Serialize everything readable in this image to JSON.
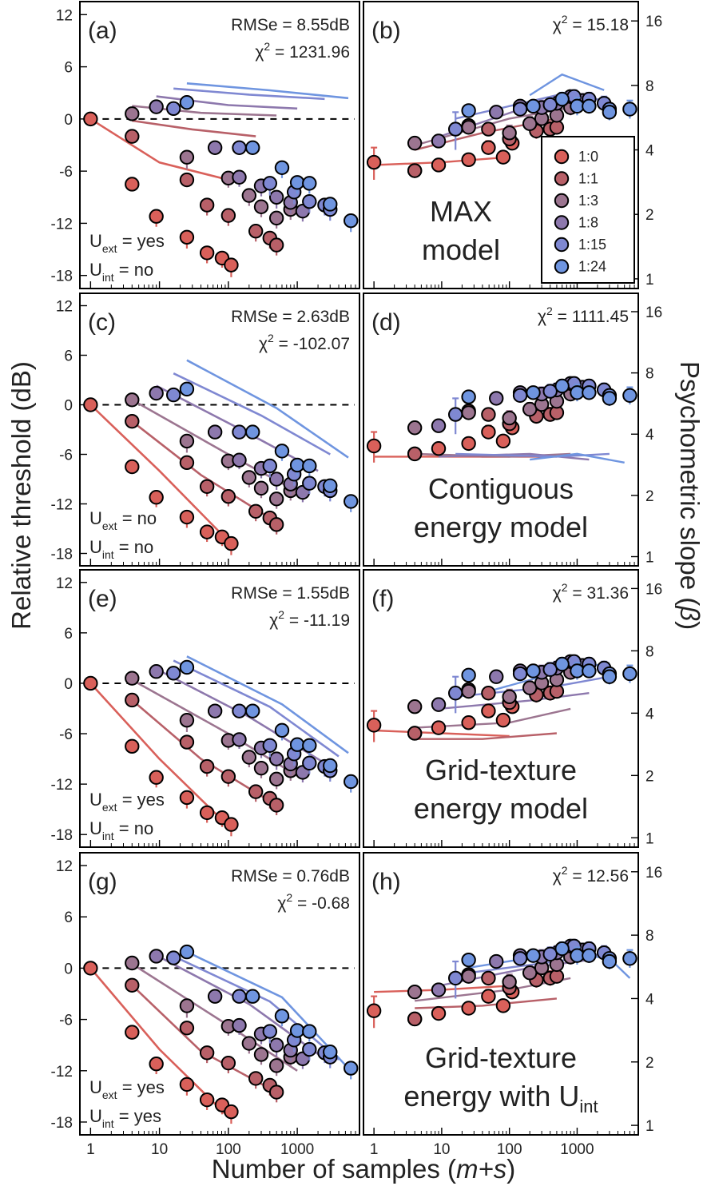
{
  "figure": {
    "ylabel_left": "Relative threshold (dB)",
    "ylabel_right": "Psychometric slope (",
    "ylabel_right_symbol": "β",
    "ylabel_right_close": ")",
    "xlabel_main": "Number of samples (",
    "xlabel_italic": "m+s",
    "xlabel_close": ")",
    "xticks": [
      "1",
      "10",
      "100",
      "1000"
    ],
    "left_yticks": [
      "12",
      "6",
      "0",
      "-6",
      "-12",
      "-18"
    ],
    "right_yticks": [
      "16",
      "8",
      "4",
      "2",
      "1"
    ]
  },
  "legend": {
    "entries": [
      {
        "label": "1:0",
        "color": "#d9605a"
      },
      {
        "label": "1:1",
        "color": "#b86068"
      },
      {
        "label": "1:3",
        "color": "#9c7590"
      },
      {
        "label": "1:8",
        "color": "#8d78ad"
      },
      {
        "label": "1:15",
        "color": "#7f88d2"
      },
      {
        "label": "1:24",
        "color": "#6f95e0"
      }
    ]
  },
  "rows": [
    {
      "left": {
        "label": "(a)",
        "rmse": "RMSe = 8.55dB",
        "chi_sym": "χ",
        "chi_sup": "2",
        "chi_val": " = 1231.96",
        "uext": "yes",
        "uint": "no"
      },
      "right": {
        "label": "(b)",
        "chi_sym": "χ",
        "chi_sup": "2",
        "chi_val": " = 15.18",
        "model_line1": "MAX",
        "model_line2": "model"
      }
    },
    {
      "left": {
        "label": "(c)",
        "rmse": "RMSe = 2.63dB",
        "chi_sym": "χ",
        "chi_sup": "2",
        "chi_val": " = -102.07",
        "uext": "no",
        "uint": "no"
      },
      "right": {
        "label": "(d)",
        "chi_sym": "χ",
        "chi_sup": "2",
        "chi_val": " = 1111.45",
        "model_line1": "Contiguous",
        "model_line2": "energy model"
      }
    },
    {
      "left": {
        "label": "(e)",
        "rmse": "RMSe = 1.55dB",
        "chi_sym": "χ",
        "chi_sup": "2",
        "chi_val": " = -11.19",
        "uext": "yes",
        "uint": "no"
      },
      "right": {
        "label": "(f)",
        "chi_sym": "χ",
        "chi_sup": "2",
        "chi_val": " = 31.36",
        "model_line1": "Grid-texture",
        "model_line2": "energy model"
      }
    },
    {
      "left": {
        "label": "(g)",
        "rmse": "RMSe = 0.76dB",
        "chi_sym": "χ",
        "chi_sup": "2",
        "chi_val": " = -0.68",
        "uext": "yes",
        "uint": "yes"
      },
      "right": {
        "label": "(h)",
        "chi_sym": "χ",
        "chi_sup": "2",
        "chi_val": " = 12.56",
        "model_line1": "Grid-texture",
        "model_line2": "energy with U",
        "model_line2_sub": "int"
      }
    }
  ],
  "uncertainty_labels": {
    "ext_sym": "U",
    "ext_sub": "ext",
    "int_sym": "U",
    "int_sub": "int",
    "eq": " = "
  },
  "chart_data": {
    "type": "scatter",
    "xscale": "log",
    "xlim": [
      0.7,
      8000
    ],
    "left_ylim": [
      -19.5,
      13.5
    ],
    "right_ylim_log2": [
      -0.15,
      4.3
    ],
    "series": [
      {
        "name": "1:0",
        "color": "#d9605a",
        "x": [
          1,
          4,
          9,
          25,
          49,
          81,
          110
        ],
        "threshold": [
          0,
          -7.5,
          -11.2,
          -13.6,
          -15.4,
          -16.0,
          -16.8
        ],
        "threshold_err": [
          0,
          0,
          0.6,
          0.7,
          0.6,
          0.5,
          0.8
        ],
        "slope": [
          3.5,
          3.2,
          3.4,
          3.6,
          4.1,
          3.7,
          4.3
        ],
        "slope_err": [
          0.6,
          0,
          0,
          0,
          0.3,
          0,
          0
        ]
      },
      {
        "name": "1:1",
        "color": "#b86068",
        "x": [
          4,
          25,
          49,
          100,
          250,
          400,
          500
        ],
        "threshold": [
          -2.0,
          -7.0,
          -9.9,
          -11.1,
          -12.9,
          -13.7,
          -14.5
        ],
        "threshold_err": [
          0,
          0,
          0.6,
          0.6,
          0.6,
          0.6,
          0.6
        ],
        "slope": [
          3.2,
          5.2,
          5.0,
          4.5,
          4.9,
          5.0,
          5.1
        ],
        "slope_err": [
          0,
          0,
          0.3,
          0.3,
          0.4,
          0.4,
          0.3
        ]
      },
      {
        "name": "1:3",
        "color": "#9c7590",
        "x": [
          4,
          25,
          100,
          200,
          300,
          500,
          800
        ],
        "threshold": [
          0.6,
          -4.4,
          -6.8,
          -8.8,
          -10.1,
          -11.4,
          -10.4
        ],
        "threshold_err": [
          0,
          0.8,
          0.5,
          0.6,
          0.6,
          0.6,
          0.6
        ],
        "slope": [
          4.3,
          5.1,
          4.8,
          5.3,
          5.6,
          5.8,
          6.3
        ],
        "slope_err": [
          0,
          0.3,
          0.4,
          0.4,
          0.4,
          0.4,
          0.5
        ]
      },
      {
        "name": "1:8",
        "color": "#8d78ad",
        "x": [
          9,
          64,
          144,
          300,
          500,
          800,
          1200
        ],
        "threshold": [
          1.4,
          -3.3,
          -6.7,
          -7.7,
          -9.0,
          -9.6,
          -10.6
        ],
        "threshold_err": [
          0,
          0,
          0.5,
          0.6,
          0.7,
          0.7,
          0.6
        ],
        "slope": [
          4.4,
          6.0,
          6.4,
          6.3,
          6.6,
          7.1,
          6.8
        ],
        "slope_err": [
          0,
          0,
          0.4,
          0.5,
          0.5,
          0.4,
          0.5
        ]
      },
      {
        "name": "1:15",
        "color": "#7f88d2",
        "x": [
          16,
          144,
          400,
          900,
          1500,
          2500,
          3000
        ],
        "threshold": [
          1.2,
          -3.3,
          -7.4,
          -8.4,
          -9.5,
          -9.9,
          -10.4
        ],
        "threshold_err": [
          0,
          0,
          0.8,
          0.8,
          0.7,
          0.6,
          0.7
        ],
        "slope": [
          5.0,
          6.2,
          6.5,
          7.1,
          6.9,
          6.6,
          6.2
        ],
        "slope_err": [
          1.0,
          0.4,
          0.5,
          0.5,
          0.5,
          0.5,
          0.4
        ]
      },
      {
        "name": "1:24",
        "color": "#6f95e0",
        "x": [
          25,
          225,
          600,
          1000,
          1500,
          3000,
          6000
        ],
        "threshold": [
          1.9,
          -3.3,
          -5.6,
          -7.3,
          -7.4,
          -9.8,
          -11.7
        ],
        "threshold_err": [
          0,
          0,
          0.6,
          0.7,
          0.6,
          0.5,
          0.7
        ],
        "slope": [
          6.1,
          6.4,
          6.9,
          6.4,
          6.4,
          6.0,
          6.2
        ],
        "slope_err": [
          0,
          0.4,
          0.5,
          0.6,
          0.5,
          0.5,
          0.6
        ]
      }
    ],
    "model_threshold_curves": [
      [
        {
          "series": "1:0",
          "x": [
            1,
            10,
            100
          ],
          "y": [
            0,
            -5,
            -7
          ]
        },
        {
          "series": "1:1",
          "x": [
            4,
            30,
            250
          ],
          "y": [
            -0.2,
            -1.2,
            -2.0
          ]
        },
        {
          "series": "1:3",
          "x": [
            4,
            40,
            500
          ],
          "y": [
            1.5,
            0.7,
            0.4
          ]
        },
        {
          "series": "1:8",
          "x": [
            9,
            100,
            1000
          ],
          "y": [
            2.6,
            1.6,
            1.2
          ]
        },
        {
          "series": "1:15",
          "x": [
            16,
            200,
            2500
          ],
          "y": [
            3.5,
            2.8,
            2.3
          ]
        },
        {
          "series": "1:24",
          "x": [
            25,
            400,
            5500
          ],
          "y": [
            4.1,
            3.3,
            2.4
          ]
        }
      ],
      [
        {
          "series": "1:0",
          "x": [
            1,
            10,
            100
          ],
          "y": [
            0,
            -8,
            -16.5
          ]
        },
        {
          "series": "1:1",
          "x": [
            4,
            40,
            500
          ],
          "y": [
            -2,
            -8.5,
            -14.2
          ]
        },
        {
          "series": "1:3",
          "x": [
            4,
            100,
            1000
          ],
          "y": [
            0.6,
            -6,
            -10.5
          ]
        },
        {
          "series": "1:8",
          "x": [
            9,
            200,
            2000
          ],
          "y": [
            2.3,
            -3.5,
            -8
          ]
        },
        {
          "series": "1:15",
          "x": [
            16,
            300,
            3000
          ],
          "y": [
            3.8,
            -1.3,
            -6
          ]
        },
        {
          "series": "1:24",
          "x": [
            25,
            500,
            5500
          ],
          "y": [
            5.4,
            -0.4,
            -6.4
          ]
        }
      ],
      [
        {
          "series": "1:0",
          "x": [
            1,
            10,
            100
          ],
          "y": [
            0,
            -9,
            -17
          ]
        },
        {
          "series": "1:1",
          "x": [
            4,
            40,
            500
          ],
          "y": [
            -2,
            -9,
            -14.5
          ]
        },
        {
          "series": "1:3",
          "x": [
            4,
            100,
            1000
          ],
          "y": [
            0.4,
            -6,
            -11
          ]
        },
        {
          "series": "1:8",
          "x": [
            9,
            200,
            2500
          ],
          "y": [
            1.7,
            -4,
            -9.5
          ]
        },
        {
          "series": "1:15",
          "x": [
            16,
            400,
            4000
          ],
          "y": [
            2.7,
            -2.8,
            -8.7
          ]
        },
        {
          "series": "1:24",
          "x": [
            25,
            600,
            5500
          ],
          "y": [
            3.2,
            -2.5,
            -8.3
          ]
        }
      ],
      [
        {
          "series": "1:0",
          "x": [
            1,
            10,
            100
          ],
          "y": [
            0,
            -9.5,
            -17.4
          ]
        },
        {
          "series": "1:1",
          "x": [
            4,
            40,
            500
          ],
          "y": [
            -2,
            -9.7,
            -14.5
          ]
        },
        {
          "series": "1:3",
          "x": [
            4,
            100,
            1000
          ],
          "y": [
            0.5,
            -6.7,
            -12
          ]
        },
        {
          "series": "1:8",
          "x": [
            9,
            200,
            2500
          ],
          "y": [
            1.5,
            -4.2,
            -10.6
          ]
        },
        {
          "series": "1:15",
          "x": [
            16,
            400,
            4000
          ],
          "y": [
            1.4,
            -3.9,
            -10.7
          ]
        },
        {
          "series": "1:24",
          "x": [
            25,
            600,
            5500
          ],
          "y": [
            1.9,
            -3.4,
            -11.7
          ]
        }
      ]
    ],
    "model_slope_curves": [
      [
        {
          "series": "1:0",
          "x": [
            1,
            10,
            100
          ],
          "y": [
            3.4,
            3.5,
            3.7
          ]
        },
        {
          "series": "1:1",
          "x": [
            4,
            40,
            500
          ],
          "y": [
            4.0,
            4.8,
            5.6
          ]
        },
        {
          "series": "1:3",
          "x": [
            4,
            100,
            800
          ],
          "y": [
            4.2,
            5.6,
            6.3
          ]
        },
        {
          "series": "1:8",
          "x": [
            9,
            200,
            1500
          ],
          "y": [
            4.6,
            6.4,
            6.8
          ]
        },
        {
          "series": "1:15",
          "x": [
            16,
            500,
            3000
          ],
          "y": [
            5.6,
            7.2,
            6.8
          ]
        },
        {
          "series": "1:24",
          "x": [
            200,
            600,
            2500
          ],
          "y": [
            7.2,
            9.0,
            7.6
          ]
        }
      ],
      [
        {
          "series": "1:0",
          "x": [
            1,
            10,
            100
          ],
          "y": [
            3.1,
            3.1,
            3.1
          ]
        },
        {
          "series": "1:1",
          "x": [
            4,
            40,
            500
          ],
          "y": [
            3.2,
            3.1,
            3.1
          ]
        },
        {
          "series": "1:3",
          "x": [
            4,
            100,
            800
          ],
          "y": [
            3.2,
            3.1,
            3.2
          ]
        },
        {
          "series": "1:8",
          "x": [
            9,
            200,
            1500
          ],
          "y": [
            3.1,
            3.2,
            3.0
          ]
        },
        {
          "series": "1:15",
          "x": [
            16,
            500,
            3000
          ],
          "y": [
            3.2,
            3.1,
            3.2
          ]
        },
        {
          "series": "1:24",
          "x": [
            200,
            1000,
            5000
          ],
          "y": [
            3.0,
            3.2,
            2.9
          ]
        }
      ],
      [
        {
          "series": "1:0",
          "x": [
            1,
            10,
            100
          ],
          "y": [
            3.3,
            3.2,
            3.1
          ]
        },
        {
          "series": "1:1",
          "x": [
            4,
            40,
            500
          ],
          "y": [
            3.0,
            3.0,
            3.2
          ]
        },
        {
          "series": "1:3",
          "x": [
            4,
            100,
            800
          ],
          "y": [
            3.4,
            3.6,
            4.2
          ]
        },
        {
          "series": "1:8",
          "x": [
            9,
            200,
            1500
          ],
          "y": [
            4.2,
            4.6,
            5.0
          ]
        },
        {
          "series": "1:15",
          "x": [
            16,
            500,
            3000
          ],
          "y": [
            4.8,
            5.4,
            6.0
          ]
        },
        {
          "series": "1:24",
          "x": [
            40,
            600,
            3000
          ],
          "y": [
            5.0,
            6.4,
            7.0
          ]
        }
      ],
      [
        {
          "series": "1:0",
          "x": [
            1,
            10,
            100
          ],
          "y": [
            4.3,
            4.4,
            4.6
          ]
        },
        {
          "series": "1:1",
          "x": [
            4,
            40,
            500
          ],
          "y": [
            3.6,
            3.7,
            4.0
          ]
        },
        {
          "series": "1:3",
          "x": [
            4,
            100,
            800
          ],
          "y": [
            3.9,
            4.4,
            5.0
          ]
        },
        {
          "series": "1:8",
          "x": [
            9,
            200,
            1500
          ],
          "y": [
            4.6,
            5.6,
            6.1
          ]
        },
        {
          "series": "1:15",
          "x": [
            16,
            500,
            3000
          ],
          "y": [
            5.2,
            6.0,
            6.6
          ]
        },
        {
          "series": "1:24",
          "x": [
            25,
            600,
            3000,
            6000
          ],
          "y": [
            5.6,
            6.6,
            6.2,
            5.0
          ]
        }
      ]
    ]
  }
}
